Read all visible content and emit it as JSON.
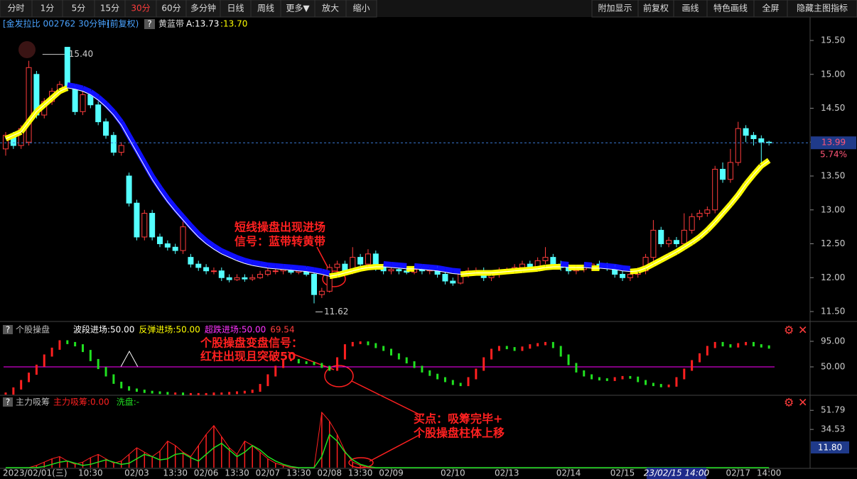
{
  "toolbar": {
    "left": [
      "分时",
      "1分",
      "5分",
      "15分",
      "30分",
      "60分",
      "多分钟",
      "日线",
      "周线",
      "更多▼",
      "放大",
      "缩小"
    ],
    "active_index": 4,
    "right": [
      "附加显示",
      "前复权",
      "画线",
      "特色画线",
      "全屏",
      "隐藏主图指标"
    ]
  },
  "header": {
    "title": "[金发拉比 002762 30分钟]",
    "adjust": "(前复权)",
    "help": "?",
    "indicator": "黄蓝带",
    "a": "A:13.73",
    "b": ":13.70"
  },
  "notes": [
    [
      "短线操盘出现进场",
      "信号：蓝带转黄带"
    ],
    [
      "个股操盘变盘信号：",
      "红柱出现且突破50"
    ],
    [
      "买点：吸筹完毕+",
      "个股操盘柱体上移"
    ]
  ],
  "xticks": [
    {
      "value": 0,
      "label": "2023/02/01(三)"
    },
    {
      "value": 11,
      "label": "10:30"
    },
    {
      "value": 17,
      "label": "02/03"
    },
    {
      "value": 22,
      "label": "13:30"
    },
    {
      "value": 26,
      "label": "02/06"
    },
    {
      "value": 30,
      "label": "13:30"
    },
    {
      "value": 34,
      "label": "02/07"
    },
    {
      "value": 38,
      "label": "13:30"
    },
    {
      "value": 42,
      "label": "02/08"
    },
    {
      "value": 46,
      "label": "13:30"
    },
    {
      "value": 50,
      "label": "02/09"
    },
    {
      "value": 58,
      "label": "02/10"
    },
    {
      "value": 65,
      "label": "02/13"
    },
    {
      "value": 73,
      "label": "02/14"
    },
    {
      "value": 80,
      "label": "02/15"
    },
    {
      "value": 95,
      "label": "02/17"
    },
    {
      "value": 99,
      "label": "14:00"
    }
  ],
  "cursor": {
    "value": 87,
    "label": "23/02/15 14:00"
  },
  "chart_data": [
    {
      "type": "candlestick",
      "up_color": "#ff3c3c",
      "down_color": "#54ffff",
      "ylim": [
        11.385,
        15.804
      ],
      "yticks": [
        {
          "value": 15.5,
          "label": "15.50"
        },
        {
          "value": 15,
          "label": "15.00"
        },
        {
          "value": 14.5,
          "label": "14.50"
        },
        {
          "value": 14,
          "label": "14.00"
        },
        {
          "value": 13.5,
          "label": "13.50"
        },
        {
          "value": 13,
          "label": "13.00"
        },
        {
          "value": 12.5,
          "label": "12.50"
        },
        {
          "value": 12,
          "label": "12.00"
        },
        {
          "value": 11.5,
          "label": "11.50"
        }
      ],
      "open": [
        13.9,
        14.1,
        13.95,
        14.0,
        15.0,
        14.4,
        14.6,
        14.75,
        15.4,
        14.8,
        14.45,
        14.7,
        14.55,
        14.3,
        14.1,
        13.85,
        13.5,
        13.1,
        12.6,
        12.95,
        12.6,
        12.5,
        12.45,
        12.4,
        12.3,
        12.2,
        12.15,
        12.1,
        12.1,
        12.0,
        11.97,
        12.0,
        11.98,
        12.0,
        12.05,
        12.1,
        12.1,
        12.12,
        12.08,
        12.1,
        12.05,
        11.75,
        11.8,
        12.15,
        12.2,
        12.1,
        12.3,
        12.2,
        12.35,
        12.15,
        12.1,
        12.12,
        12.1,
        12.08,
        12.12,
        12.1,
        12.13,
        12.05,
        11.95,
        11.92,
        12.05,
        12.1,
        12.1,
        12.0,
        12.05,
        12.1,
        12.12,
        12.15,
        12.2,
        12.15,
        12.25,
        12.3,
        12.2,
        12.15,
        12.1,
        12.12,
        12.15,
        12.2,
        12.18,
        12.15,
        12.05,
        12.0,
        12.05,
        12.1,
        12.3,
        12.7,
        12.5,
        12.55,
        12.5,
        12.7,
        12.9,
        12.95,
        13.0,
        13.6,
        13.45,
        13.7,
        14.2,
        14.1,
        14.05,
        14.0
      ],
      "high": [
        14.15,
        14.15,
        14.25,
        15.2,
        15.05,
        14.65,
        14.8,
        14.9,
        15.4,
        14.85,
        14.75,
        14.75,
        14.6,
        14.35,
        14.15,
        14.0,
        13.55,
        13.15,
        13.0,
        13.0,
        12.65,
        12.55,
        12.5,
        12.95,
        12.35,
        12.25,
        12.2,
        12.15,
        12.15,
        12.05,
        12.05,
        12.05,
        12.05,
        12.1,
        12.15,
        12.15,
        12.15,
        12.15,
        12.15,
        12.15,
        12.1,
        11.85,
        12.2,
        12.25,
        12.25,
        12.45,
        12.35,
        12.42,
        12.4,
        12.2,
        12.15,
        12.15,
        12.15,
        12.15,
        12.15,
        12.15,
        12.18,
        12.1,
        12.0,
        12.1,
        12.15,
        12.15,
        12.15,
        12.1,
        12.15,
        12.15,
        12.2,
        12.25,
        12.25,
        12.3,
        12.45,
        12.35,
        12.25,
        12.2,
        12.15,
        12.18,
        12.22,
        12.25,
        12.22,
        12.2,
        12.1,
        12.08,
        12.15,
        12.35,
        12.85,
        12.75,
        12.6,
        12.6,
        12.95,
        12.95,
        13.0,
        13.05,
        13.65,
        13.7,
        13.9,
        14.3,
        14.25,
        14.15,
        14.1,
        14.02
      ],
      "low": [
        13.8,
        13.9,
        13.9,
        13.95,
        14.35,
        14.35,
        14.55,
        14.7,
        14.75,
        14.4,
        14.4,
        14.5,
        14.25,
        14.05,
        13.8,
        13.8,
        13.05,
        12.55,
        12.55,
        12.55,
        12.45,
        12.4,
        12.35,
        12.35,
        12.15,
        12.1,
        12.05,
        12.05,
        11.95,
        11.93,
        11.95,
        11.94,
        11.95,
        11.98,
        12.02,
        12.05,
        12.05,
        12.05,
        12.05,
        12.02,
        11.62,
        11.7,
        11.78,
        12.1,
        12.05,
        12.05,
        12.15,
        12.15,
        12.1,
        12.05,
        12.05,
        12.05,
        12.05,
        12.05,
        12.05,
        12.05,
        12.0,
        11.9,
        11.88,
        11.9,
        12.0,
        12.05,
        11.95,
        11.95,
        12.0,
        12.05,
        12.1,
        12.1,
        12.1,
        12.1,
        12.2,
        12.15,
        12.1,
        12.05,
        12.05,
        12.08,
        12.1,
        12.12,
        12.1,
        12.0,
        11.95,
        11.95,
        12.0,
        12.05,
        12.25,
        12.45,
        12.45,
        12.45,
        12.45,
        12.65,
        12.85,
        12.9,
        12.95,
        13.4,
        13.4,
        13.65,
        14.0,
        13.95,
        13.6,
        13.95
      ],
      "close": [
        14.1,
        13.95,
        14.2,
        15.1,
        14.4,
        14.6,
        14.75,
        14.85,
        14.8,
        14.45,
        14.7,
        14.55,
        14.3,
        14.1,
        13.85,
        13.95,
        13.1,
        12.6,
        12.95,
        12.6,
        12.5,
        12.45,
        12.4,
        12.75,
        12.2,
        12.15,
        12.1,
        12.1,
        12.0,
        11.97,
        12.0,
        11.98,
        12.0,
        12.05,
        12.1,
        12.1,
        12.12,
        12.08,
        12.1,
        12.05,
        11.75,
        11.8,
        12.15,
        12.2,
        12.1,
        12.3,
        12.2,
        12.35,
        12.15,
        12.1,
        12.12,
        12.1,
        12.08,
        12.12,
        12.1,
        12.13,
        12.05,
        11.95,
        11.92,
        12.05,
        12.1,
        12.1,
        12.0,
        12.05,
        12.1,
        12.12,
        12.15,
        12.2,
        12.15,
        12.25,
        12.3,
        12.2,
        12.15,
        12.1,
        12.12,
        12.15,
        12.2,
        12.18,
        12.15,
        12.05,
        12.0,
        12.05,
        12.1,
        12.3,
        12.7,
        12.5,
        12.55,
        12.5,
        12.7,
        12.9,
        12.95,
        13.0,
        13.6,
        13.45,
        13.7,
        14.2,
        14.1,
        14.05,
        14.0,
        13.99
      ],
      "band": {
        "up_color": "#ffff00",
        "down_color": "#1010ff",
        "values": [
          14.05,
          14.1,
          14.15,
          14.3,
          14.45,
          14.55,
          14.65,
          14.75,
          14.8,
          14.78,
          14.75,
          14.7,
          14.62,
          14.52,
          14.4,
          14.25,
          14.05,
          13.85,
          13.65,
          13.45,
          13.28,
          13.12,
          12.98,
          12.85,
          12.72,
          12.6,
          12.5,
          12.42,
          12.35,
          12.3,
          12.25,
          12.21,
          12.18,
          12.16,
          12.14,
          12.13,
          12.12,
          12.11,
          12.1,
          12.09,
          12.07,
          12.05,
          12.02,
          12.04,
          12.07,
          12.1,
          12.13,
          12.15,
          12.16,
          12.16,
          12.15,
          12.14,
          12.13,
          12.13,
          12.12,
          12.11,
          12.1,
          12.08,
          12.06,
          12.05,
          12.06,
          12.07,
          12.07,
          12.07,
          12.08,
          12.09,
          12.1,
          12.11,
          12.12,
          12.13,
          12.15,
          12.16,
          12.16,
          12.15,
          12.15,
          12.15,
          12.14,
          12.14,
          12.13,
          12.12,
          12.1,
          12.09,
          12.1,
          12.14,
          12.2,
          12.26,
          12.32,
          12.38,
          12.45,
          12.52,
          12.6,
          12.7,
          12.82,
          12.95,
          13.08,
          13.22,
          13.38,
          13.52,
          13.65,
          13.73
        ]
      },
      "high_label": "15.40",
      "low_label": "11.62",
      "change_label": "5.74%"
    },
    {
      "type": "signal",
      "help": "?",
      "title": "个股操盘",
      "legend": [
        "波段进场:50.00",
        "反弹进场:50.00",
        "超跌进场:50.00",
        "69.54"
      ],
      "legend_colors": [
        "#ffffff",
        "#ffff00",
        "#ff33ff",
        "#ff3c3c"
      ],
      "up_color": "#ff2020",
      "down_color": "#20e020",
      "level": {
        "value": 50,
        "color": "#ff00ff"
      },
      "ylim": [
        0,
        115
      ],
      "yticks": [
        {
          "value": 95,
          "label": "95.00"
        },
        {
          "value": 50,
          "label": "50.00"
        }
      ],
      "values": [
        3,
        12,
        25,
        38,
        52,
        70,
        82,
        95,
        92,
        88,
        78,
        62,
        48,
        35,
        22,
        14,
        10,
        8,
        6,
        5,
        4,
        3,
        3,
        2,
        2,
        2,
        2,
        3,
        3,
        4,
        5,
        6,
        8,
        18,
        35,
        50,
        62,
        62,
        58,
        57,
        55,
        50,
        45,
        65,
        88,
        92,
        93,
        90,
        85,
        80,
        72,
        65,
        58,
        50,
        42,
        36,
        30,
        25,
        20,
        18,
        30,
        45,
        65,
        80,
        85,
        83,
        80,
        84,
        88,
        90,
        92,
        85,
        70,
        55,
        42,
        35,
        30,
        28,
        27,
        30,
        32,
        31,
        25,
        20,
        18,
        16,
        17,
        30,
        45,
        60,
        72,
        85,
        92,
        88,
        86,
        90,
        92,
        88,
        86,
        84
      ]
    },
    {
      "type": "stick",
      "help": "?",
      "title": "主力吸筹",
      "cursor_label": "11.80",
      "ylim": [
        0,
        59
      ],
      "yticks": [
        51.79,
        34.53
      ],
      "series": [
        {
          "name": "主力吸筹:0.00",
          "color": "#ff2020",
          "values": [
            0,
            0,
            0,
            0,
            2,
            5,
            8,
            10,
            6,
            3,
            5,
            9,
            12,
            8,
            4,
            6,
            12,
            18,
            14,
            10,
            15,
            24,
            20,
            14,
            10,
            20,
            30,
            38,
            28,
            18,
            12,
            24,
            20,
            14,
            8,
            4,
            2,
            0,
            0,
            0,
            0,
            50,
            42,
            30,
            15,
            5,
            2,
            0,
            0,
            0,
            0,
            0,
            0,
            0,
            0,
            0,
            0,
            0,
            0,
            0,
            0,
            0,
            0,
            0,
            0,
            0,
            0,
            0,
            0,
            0,
            0,
            0,
            0,
            0,
            0,
            0,
            0,
            0,
            0,
            0,
            0,
            0,
            0,
            0,
            0,
            0,
            0,
            0,
            0,
            0,
            0,
            0,
            0,
            0,
            0,
            0,
            0,
            0,
            0,
            0
          ]
        },
        {
          "name": "洗盘:-",
          "color": "#20e020",
          "values": [
            0,
            0,
            0,
            0,
            0,
            1,
            3,
            5,
            6,
            4,
            2,
            3,
            5,
            7,
            5,
            3,
            4,
            8,
            12,
            10,
            7,
            8,
            12,
            13,
            9,
            6,
            12,
            18,
            22,
            16,
            10,
            14,
            20,
            16,
            10,
            6,
            3,
            1,
            0,
            0,
            0,
            10,
            30,
            24,
            14,
            7,
            3,
            1,
            0,
            0,
            0,
            0,
            0,
            0,
            0,
            0,
            0,
            0,
            0,
            0,
            0,
            0,
            0,
            0,
            0,
            0,
            0,
            0,
            0,
            0,
            0,
            0,
            0,
            0,
            0,
            0,
            0,
            0,
            0,
            0,
            0,
            0,
            0,
            0,
            0,
            0,
            0,
            0,
            0,
            0,
            0,
            0,
            0,
            0,
            0,
            0,
            0,
            0,
            0,
            0
          ]
        }
      ]
    }
  ]
}
